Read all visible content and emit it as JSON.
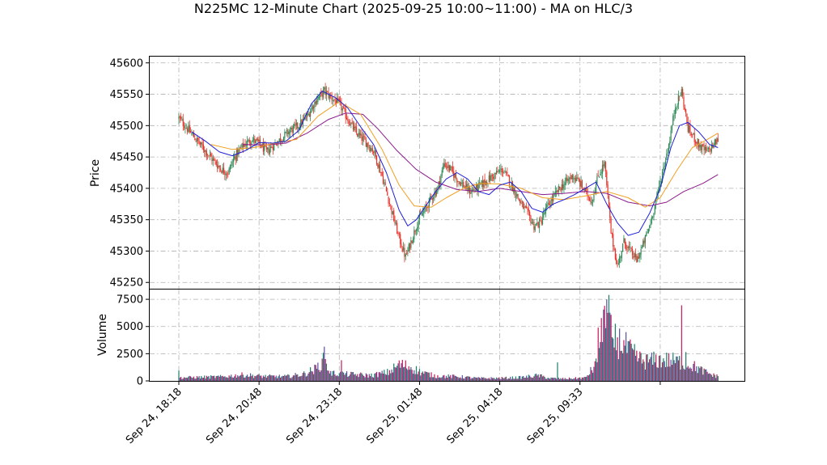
{
  "chart_data": {
    "type": "candlestick",
    "title": "N225MC 12-Minute Chart (2025-09-25 10:00~11:00) - MA on HLC/3",
    "price_panel": {
      "ylabel": "Price",
      "ylim": [
        45240,
        45610
      ],
      "yticks": [
        45250,
        45300,
        45350,
        45400,
        45450,
        45500,
        45550,
        45600
      ],
      "grid": true
    },
    "volume_panel": {
      "ylabel": "Volume",
      "ylim": [
        0,
        8400
      ],
      "yticks": [
        0,
        2500,
        5000,
        7500
      ],
      "grid": true
    },
    "xtick_labels": [
      "Sep 24, 18:18",
      "Sep 24, 20:48",
      "Sep 24, 23:18",
      "Sep 25, 01:48",
      "Sep 25, 04:18",
      "Sep 25, 09:33"
    ],
    "colors": {
      "up": "#2e8b57",
      "down": "#e8332a",
      "volume_a": "#1a7f6b",
      "volume_b": "#5a4ea0",
      "volume_c": "#c2185b",
      "ma_short": "#1f1fd6",
      "ma_mid": "#f0a020",
      "ma_long": "#8b1a8b"
    },
    "price_path": [
      [
        0,
        45512
      ],
      [
        8,
        45495
      ],
      [
        16,
        45478
      ],
      [
        24,
        45462
      ],
      [
        32,
        45445
      ],
      [
        40,
        45430
      ],
      [
        46,
        45425
      ],
      [
        52,
        45450
      ],
      [
        60,
        45468
      ],
      [
        68,
        45478
      ],
      [
        76,
        45470
      ],
      [
        82,
        45458
      ],
      [
        88,
        45468
      ],
      [
        96,
        45480
      ],
      [
        104,
        45492
      ],
      [
        112,
        45500
      ],
      [
        120,
        45515
      ],
      [
        128,
        45540
      ],
      [
        136,
        45555
      ],
      [
        142,
        45545
      ],
      [
        150,
        45535
      ],
      [
        158,
        45510
      ],
      [
        166,
        45488
      ],
      [
        174,
        45475
      ],
      [
        182,
        45460
      ],
      [
        190,
        45420
      ],
      [
        198,
        45370
      ],
      [
        206,
        45320
      ],
      [
        212,
        45290
      ],
      [
        218,
        45320
      ],
      [
        224,
        45350
      ],
      [
        230,
        45365
      ],
      [
        236,
        45385
      ],
      [
        242,
        45400
      ],
      [
        248,
        45440
      ],
      [
        254,
        45430
      ],
      [
        260,
        45415
      ],
      [
        266,
        45405
      ],
      [
        272,
        45395
      ],
      [
        278,
        45400
      ],
      [
        286,
        45410
      ],
      [
        294,
        45420
      ],
      [
        302,
        45430
      ],
      [
        308,
        45415
      ],
      [
        314,
        45395
      ],
      [
        320,
        45375
      ],
      [
        326,
        45360
      ],
      [
        332,
        45340
      ],
      [
        338,
        45345
      ],
      [
        344,
        45370
      ],
      [
        350,
        45385
      ],
      [
        356,
        45400
      ],
      [
        362,
        45410
      ],
      [
        368,
        45420
      ],
      [
        374,
        45410
      ],
      [
        380,
        45395
      ],
      [
        386,
        45380
      ],
      [
        392,
        45420
      ],
      [
        398,
        45440
      ],
      [
        404,
        45330
      ],
      [
        410,
        45275
      ],
      [
        416,
        45315
      ],
      [
        422,
        45300
      ],
      [
        428,
        45285
      ],
      [
        434,
        45310
      ],
      [
        440,
        45340
      ],
      [
        446,
        45380
      ],
      [
        452,
        45425
      ],
      [
        458,
        45470
      ],
      [
        464,
        45530
      ],
      [
        470,
        45555
      ],
      [
        476,
        45495
      ],
      [
        482,
        45480
      ],
      [
        488,
        45465
      ],
      [
        494,
        45458
      ],
      [
        500,
        45470
      ],
      [
        504,
        45478
      ]
    ],
    "ma_short": [
      [
        12,
        45490
      ],
      [
        25,
        45475
      ],
      [
        38,
        45458
      ],
      [
        50,
        45452
      ],
      [
        62,
        45460
      ],
      [
        75,
        45473
      ],
      [
        88,
        45472
      ],
      [
        100,
        45475
      ],
      [
        112,
        45492
      ],
      [
        124,
        45535
      ],
      [
        134,
        45555
      ],
      [
        146,
        45545
      ],
      [
        158,
        45528
      ],
      [
        170,
        45498
      ],
      [
        182,
        45470
      ],
      [
        194,
        45425
      ],
      [
        206,
        45365
      ],
      [
        214,
        45340
      ],
      [
        222,
        45350
      ],
      [
        230,
        45370
      ],
      [
        240,
        45395
      ],
      [
        250,
        45415
      ],
      [
        260,
        45425
      ],
      [
        270,
        45415
      ],
      [
        280,
        45395
      ],
      [
        290,
        45390
      ],
      [
        300,
        45405
      ],
      [
        310,
        45410
      ],
      [
        320,
        45395
      ],
      [
        330,
        45368
      ],
      [
        340,
        45362
      ],
      [
        350,
        45375
      ],
      [
        360,
        45382
      ],
      [
        370,
        45390
      ],
      [
        380,
        45400
      ],
      [
        390,
        45410
      ],
      [
        400,
        45375
      ],
      [
        410,
        45345
      ],
      [
        420,
        45325
      ],
      [
        430,
        45330
      ],
      [
        440,
        45360
      ],
      [
        450,
        45400
      ],
      [
        460,
        45465
      ],
      [
        468,
        45500
      ],
      [
        476,
        45505
      ],
      [
        486,
        45490
      ],
      [
        496,
        45470
      ],
      [
        504,
        45465
      ]
    ],
    "ma_mid": [
      [
        30,
        45470
      ],
      [
        50,
        45462
      ],
      [
        70,
        45465
      ],
      [
        90,
        45472
      ],
      [
        110,
        45478
      ],
      [
        130,
        45515
      ],
      [
        150,
        45538
      ],
      [
        170,
        45518
      ],
      [
        190,
        45462
      ],
      [
        206,
        45405
      ],
      [
        220,
        45372
      ],
      [
        236,
        45370
      ],
      [
        250,
        45385
      ],
      [
        266,
        45400
      ],
      [
        282,
        45408
      ],
      [
        300,
        45407
      ],
      [
        320,
        45400
      ],
      [
        340,
        45385
      ],
      [
        360,
        45382
      ],
      [
        380,
        45388
      ],
      [
        400,
        45395
      ],
      [
        420,
        45385
      ],
      [
        436,
        45370
      ],
      [
        450,
        45385
      ],
      [
        466,
        45430
      ],
      [
        480,
        45465
      ],
      [
        494,
        45478
      ],
      [
        504,
        45488
      ]
    ],
    "ma_long": [
      [
        60,
        45470
      ],
      [
        80,
        45469
      ],
      [
        100,
        45472
      ],
      [
        120,
        45488
      ],
      [
        140,
        45510
      ],
      [
        156,
        45520
      ],
      [
        172,
        45518
      ],
      [
        186,
        45495
      ],
      [
        204,
        45460
      ],
      [
        222,
        45430
      ],
      [
        240,
        45410
      ],
      [
        260,
        45398
      ],
      [
        280,
        45395
      ],
      [
        300,
        45400
      ],
      [
        320,
        45395
      ],
      [
        340,
        45390
      ],
      [
        360,
        45392
      ],
      [
        380,
        45395
      ],
      [
        400,
        45392
      ],
      [
        420,
        45378
      ],
      [
        440,
        45372
      ],
      [
        456,
        45378
      ],
      [
        472,
        45395
      ],
      [
        490,
        45408
      ],
      [
        504,
        45422
      ]
    ],
    "volume_path": [
      [
        0,
        300
      ],
      [
        40,
        380
      ],
      [
        60,
        550
      ],
      [
        80,
        420
      ],
      [
        100,
        400
      ],
      [
        116,
        600
      ],
      [
        128,
        1100
      ],
      [
        136,
        1900
      ],
      [
        142,
        700
      ],
      [
        160,
        600
      ],
      [
        180,
        500
      ],
      [
        196,
        800
      ],
      [
        206,
        1500
      ],
      [
        216,
        1300
      ],
      [
        226,
        800
      ],
      [
        240,
        450
      ],
      [
        260,
        400
      ],
      [
        280,
        250
      ],
      [
        300,
        250
      ],
      [
        320,
        320
      ],
      [
        336,
        500
      ],
      [
        346,
        250
      ],
      [
        360,
        200
      ],
      [
        380,
        280
      ],
      [
        390,
        1500
      ],
      [
        398,
        5600
      ],
      [
        406,
        3800
      ],
      [
        414,
        3500
      ],
      [
        424,
        2500
      ],
      [
        434,
        1800
      ],
      [
        446,
        1900
      ],
      [
        456,
        1900
      ],
      [
        464,
        1800
      ],
      [
        472,
        1700
      ],
      [
        480,
        1400
      ],
      [
        490,
        900
      ],
      [
        500,
        500
      ],
      [
        504,
        450
      ]
    ],
    "volume_spikes": [
      [
        0,
        950
      ],
      [
        136,
        3150
      ],
      [
        152,
        1900
      ],
      [
        354,
        1700
      ],
      [
        392,
        4900
      ],
      [
        398,
        6900
      ],
      [
        400,
        7500
      ],
      [
        402,
        7900
      ],
      [
        406,
        3900
      ],
      [
        470,
        6950
      ],
      [
        474,
        2650
      ]
    ]
  }
}
